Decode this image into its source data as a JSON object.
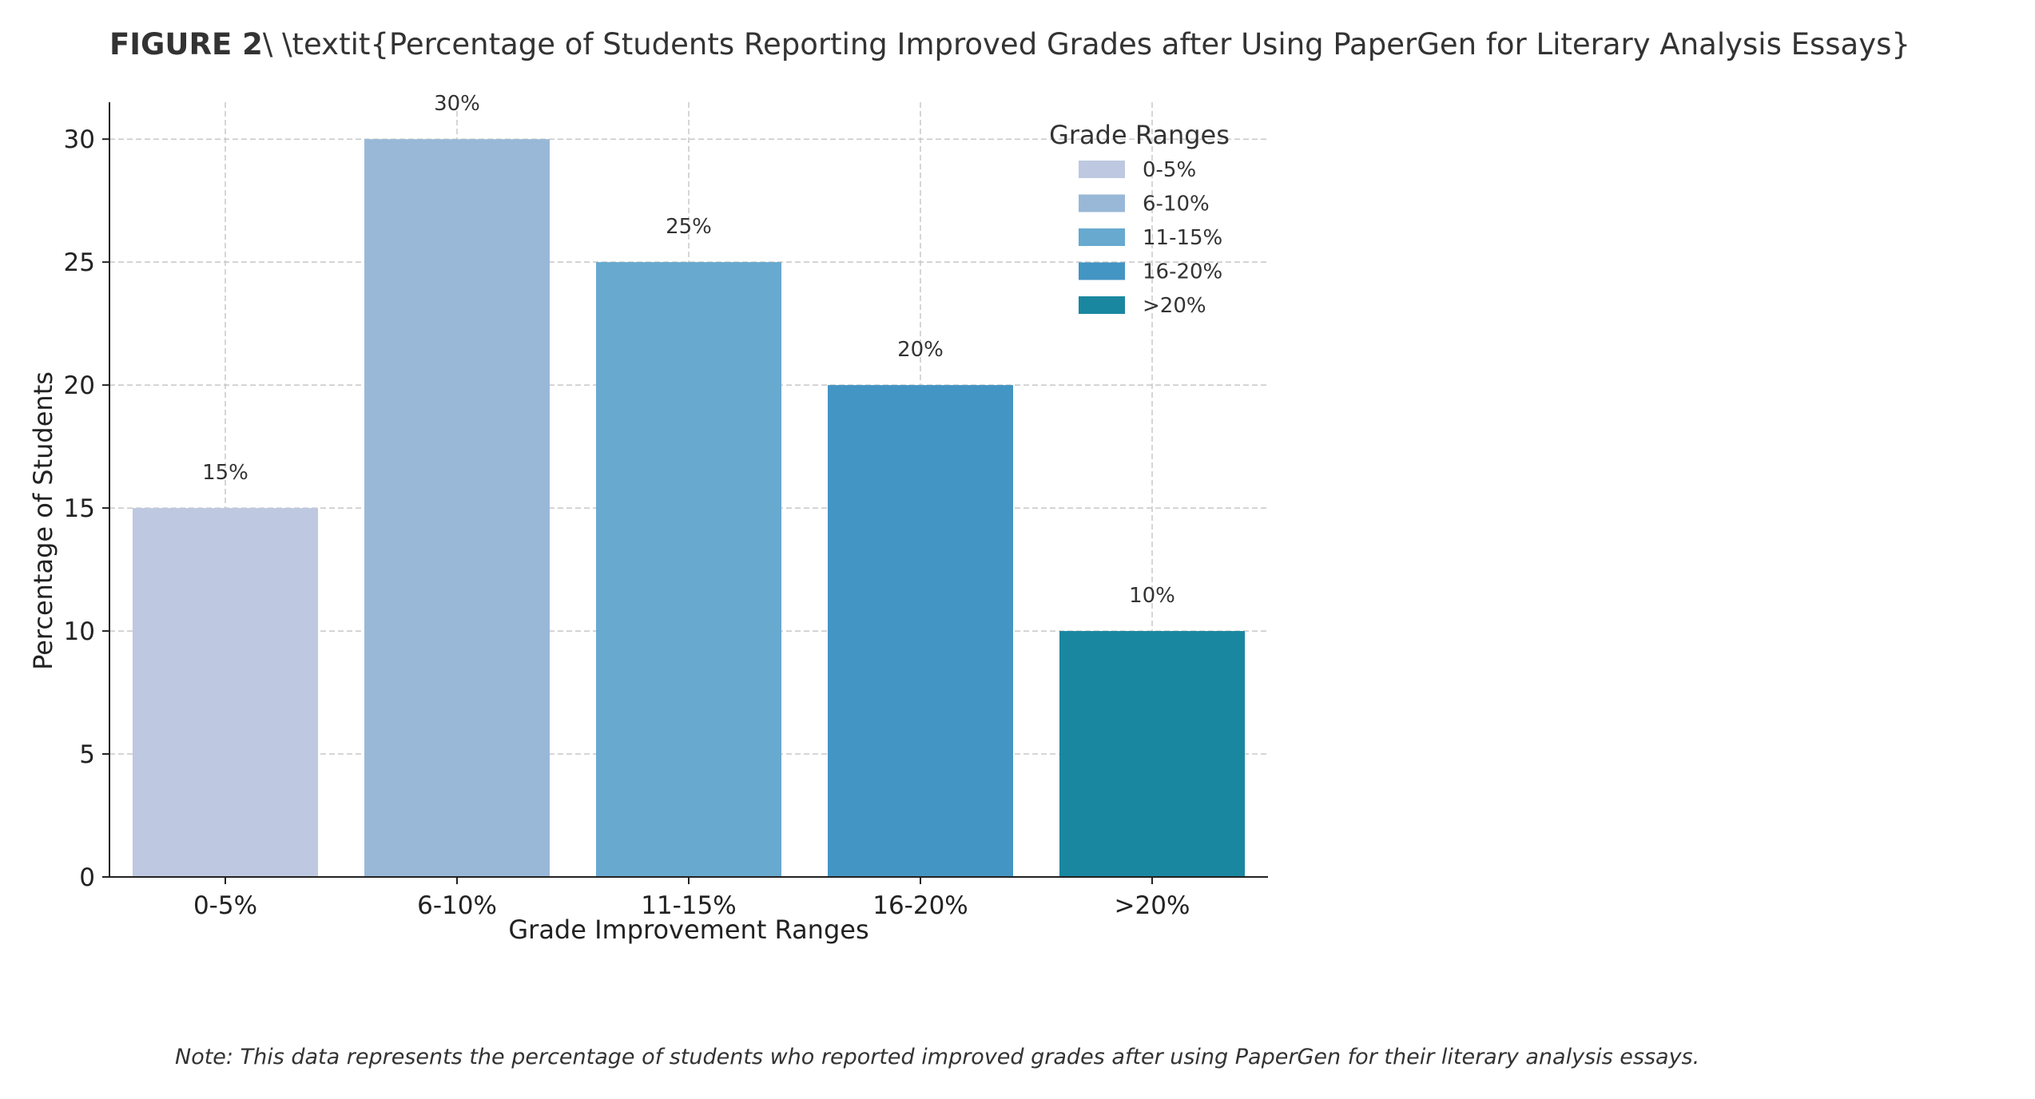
{
  "figure": {
    "label": "FIGURE 2",
    "title_rest": "\\ \\textit{Percentage of Students Reporting Improved Grades after Using PaperGen for Literary Analysis Essays}"
  },
  "note": "Note: This data represents the percentage of students who reported improved grades after using PaperGen for their literary analysis essays.",
  "chart_data": {
    "type": "bar",
    "title": "FIGURE 2\\ \\textit{Percentage of Students Reporting Improved Grades after Using PaperGen for Literary Analysis Essays}",
    "categories": [
      "0-5%",
      "6-10%",
      "11-15%",
      "16-20%",
      ">20%"
    ],
    "values": [
      15,
      30,
      25,
      20,
      10
    ],
    "value_labels": [
      "15%",
      "30%",
      "25%",
      "20%",
      "10%"
    ],
    "colors": [
      "#bec8e1",
      "#99b8d7",
      "#67a9cf",
      "#4395c4",
      "#1a87a0"
    ],
    "xlabel": "Grade Improvement Ranges",
    "ylabel": "Percentage of Students",
    "ylim": [
      0,
      31.5
    ],
    "yticks": [
      0,
      5,
      10,
      15,
      20,
      25,
      30
    ],
    "grid": true,
    "legend": {
      "title": "Grade Ranges",
      "placement": "top-right",
      "entries": [
        "0-5%",
        "6-10%",
        "11-15%",
        "16-20%",
        ">20%"
      ]
    }
  }
}
